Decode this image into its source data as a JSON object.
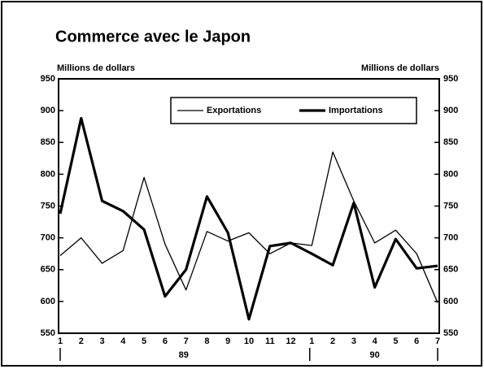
{
  "chart_data": {
    "type": "line",
    "title": "Commerce avec le Japon",
    "y_label": "Millions de dollars",
    "y2_label": "Millions de dollars",
    "categories": [
      "1",
      "2",
      "3",
      "4",
      "5",
      "6",
      "7",
      "8",
      "9",
      "10",
      "11",
      "12",
      "1",
      "2",
      "3",
      "4",
      "5",
      "6",
      "7"
    ],
    "year_labels": [
      "89",
      "90"
    ],
    "series": [
      {
        "name": "Exportations",
        "color": "#000000",
        "width": 1.3,
        "values": [
          672,
          700,
          660,
          680,
          795,
          690,
          618,
          710,
          695,
          708,
          675,
          692,
          688,
          835,
          758,
          692,
          712,
          675,
          598
        ]
      },
      {
        "name": "Importations",
        "color": "#000000",
        "width": 3.2,
        "values": [
          738,
          888,
          758,
          742,
          713,
          608,
          650,
          765,
          708,
          572,
          687,
          692,
          675,
          657,
          755,
          622,
          698,
          652,
          656
        ]
      }
    ],
    "ylim": [
      550,
      950
    ],
    "yticks": [
      550,
      600,
      650,
      700,
      750,
      800,
      850,
      900,
      950
    ],
    "y2lim": [
      550,
      950
    ],
    "y2ticks": [
      550,
      600,
      650,
      700,
      750,
      800,
      850,
      900,
      950
    ],
    "legend": "top-right"
  }
}
